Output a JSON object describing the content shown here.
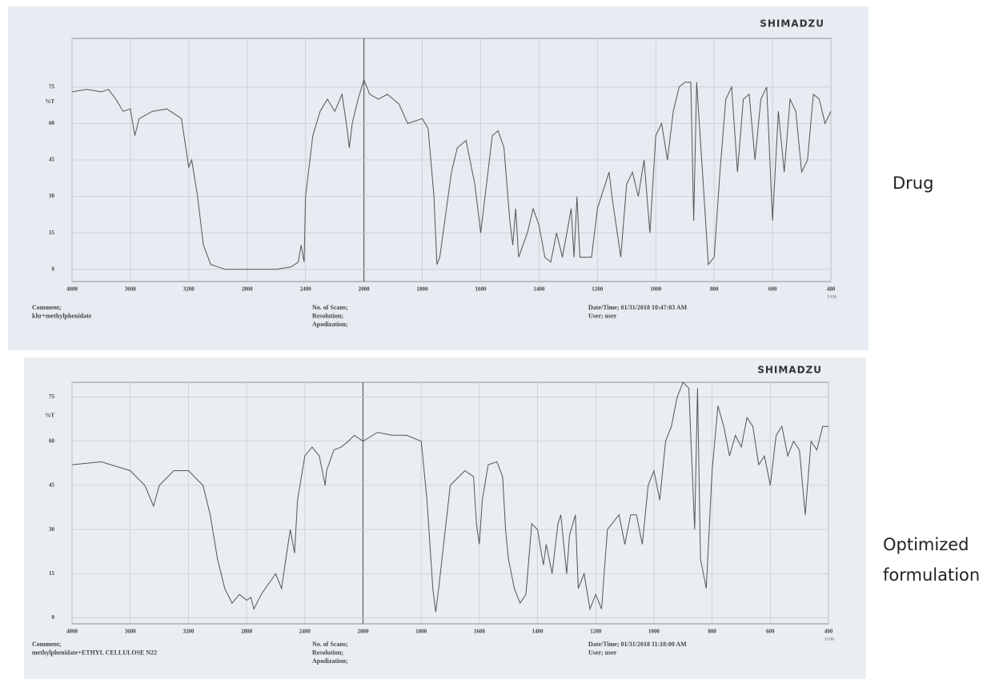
{
  "chart_data": [
    {
      "type": "line",
      "label": "Drug",
      "brand": "SHIMADZU",
      "x_unit": "1/cm",
      "y_unit": "%T",
      "grid": true,
      "color": "#555555",
      "footer": {
        "comment": [
          "Comment;",
          "khr+methylphenidate"
        ],
        "scan": [
          "No. of Scans;",
          "Resolution;",
          "Apodization;"
        ],
        "info": [
          "Date/Time; 01/31/2018 10:47:03 AM",
          "User;      user"
        ]
      },
      "xlim": [
        4000,
        400
      ],
      "xticks": [
        4000,
        3600,
        3200,
        2800,
        2400,
        2000,
        1800,
        1600,
        1400,
        1200,
        1000,
        800,
        600,
        400
      ],
      "ylim": [
        -5,
        95
      ],
      "yticks": [
        0,
        15,
        30,
        45,
        60,
        75
      ],
      "x": [
        4000,
        3900,
        3800,
        3750,
        3700,
        3650,
        3600,
        3570,
        3540,
        3450,
        3350,
        3250,
        3200,
        3180,
        3140,
        3100,
        3050,
        2950,
        2800,
        2600,
        2500,
        2450,
        2430,
        2410,
        2400,
        2350,
        2300,
        2250,
        2200,
        2150,
        2120,
        2100,
        2080,
        2040,
        2000,
        1980,
        1950,
        1920,
        1880,
        1850,
        1800,
        1780,
        1760,
        1750,
        1740,
        1700,
        1680,
        1650,
        1620,
        1600,
        1580,
        1560,
        1540,
        1520,
        1500,
        1490,
        1480,
        1470,
        1440,
        1420,
        1400,
        1380,
        1360,
        1340,
        1320,
        1300,
        1290,
        1280,
        1270,
        1260,
        1240,
        1220,
        1200,
        1160,
        1150,
        1120,
        1100,
        1080,
        1060,
        1040,
        1020,
        1000,
        980,
        960,
        940,
        920,
        900,
        880,
        870,
        860,
        840,
        820,
        800,
        780,
        760,
        740,
        720,
        700,
        680,
        660,
        640,
        620,
        600,
        580,
        560,
        540,
        520,
        500,
        480,
        460,
        440,
        420,
        400
      ],
      "values": [
        73,
        74,
        73,
        74,
        70,
        65,
        66,
        55,
        62,
        65,
        66,
        62,
        42,
        45,
        30,
        10,
        2,
        0,
        0,
        0,
        1,
        3,
        10,
        3,
        30,
        55,
        65,
        70,
        65,
        72,
        60,
        50,
        60,
        70,
        78,
        72,
        70,
        72,
        68,
        60,
        62,
        58,
        30,
        2,
        5,
        40,
        50,
        53,
        35,
        15,
        35,
        55,
        57,
        50,
        20,
        10,
        25,
        5,
        15,
        25,
        18,
        5,
        3,
        15,
        5,
        18,
        25,
        5,
        30,
        5,
        5,
        5,
        25,
        40,
        30,
        5,
        35,
        40,
        30,
        45,
        15,
        55,
        60,
        45,
        65,
        75,
        77,
        77,
        20,
        77,
        40,
        2,
        5,
        40,
        70,
        75,
        40,
        70,
        72,
        45,
        70,
        75,
        20,
        65,
        40,
        70,
        65,
        40,
        45,
        72,
        70,
        60,
        65
      ]
    },
    {
      "type": "line",
      "label": "Optimized formulation",
      "brand": "SHIMADZU",
      "x_unit": "1/cm",
      "y_unit": "%T",
      "grid": true,
      "color": "#555555",
      "footer": {
        "comment": [
          "Comment;",
          "methylphenidate+ETHYL CELLULOSE N22"
        ],
        "scan": [
          "No. of Scans;",
          "Resolution;",
          "Apodization;"
        ],
        "info": [
          "Date/Time; 01/31/2018 11:18:00 AM",
          "User;      user"
        ]
      },
      "xlim": [
        4000,
        400
      ],
      "xticks": [
        4000,
        3600,
        3200,
        2800,
        2400,
        2000,
        1800,
        1600,
        1400,
        1200,
        1000,
        800,
        600,
        400
      ],
      "ylim": [
        -2,
        80
      ],
      "yticks": [
        0,
        15,
        30,
        45,
        60,
        75
      ],
      "x": [
        4000,
        3800,
        3600,
        3500,
        3440,
        3400,
        3300,
        3200,
        3100,
        3050,
        3000,
        2950,
        2900,
        2850,
        2800,
        2770,
        2750,
        2700,
        2600,
        2560,
        2530,
        2500,
        2470,
        2450,
        2400,
        2350,
        2300,
        2260,
        2250,
        2200,
        2150,
        2100,
        2060,
        2000,
        1950,
        1900,
        1850,
        1800,
        1780,
        1760,
        1750,
        1740,
        1700,
        1650,
        1620,
        1610,
        1600,
        1590,
        1570,
        1540,
        1520,
        1510,
        1500,
        1480,
        1460,
        1440,
        1420,
        1400,
        1380,
        1370,
        1350,
        1330,
        1320,
        1300,
        1290,
        1270,
        1260,
        1240,
        1220,
        1200,
        1180,
        1160,
        1120,
        1100,
        1080,
        1060,
        1040,
        1020,
        1000,
        980,
        960,
        940,
        920,
        900,
        880,
        860,
        850,
        840,
        820,
        800,
        780,
        760,
        740,
        720,
        700,
        680,
        660,
        640,
        620,
        600,
        580,
        560,
        540,
        520,
        500,
        480,
        460,
        440,
        420,
        400
      ],
      "values": [
        52,
        53,
        50,
        45,
        38,
        45,
        50,
        50,
        45,
        35,
        20,
        10,
        5,
        8,
        6,
        7,
        3,
        8,
        15,
        10,
        20,
        30,
        22,
        40,
        55,
        58,
        55,
        45,
        50,
        57,
        58,
        60,
        62,
        60,
        63,
        62,
        62,
        60,
        40,
        10,
        2,
        10,
        45,
        50,
        48,
        32,
        25,
        40,
        52,
        53,
        48,
        30,
        20,
        10,
        5,
        8,
        32,
        30,
        18,
        25,
        15,
        32,
        35,
        15,
        28,
        35,
        10,
        15,
        3,
        8,
        3,
        30,
        35,
        25,
        35,
        35,
        25,
        45,
        50,
        40,
        60,
        65,
        75,
        80,
        78,
        30,
        78,
        20,
        10,
        50,
        72,
        65,
        55,
        62,
        58,
        68,
        65,
        52,
        55,
        45,
        62,
        65,
        55,
        60,
        57,
        35,
        60,
        57,
        65,
        65
      ]
    }
  ]
}
